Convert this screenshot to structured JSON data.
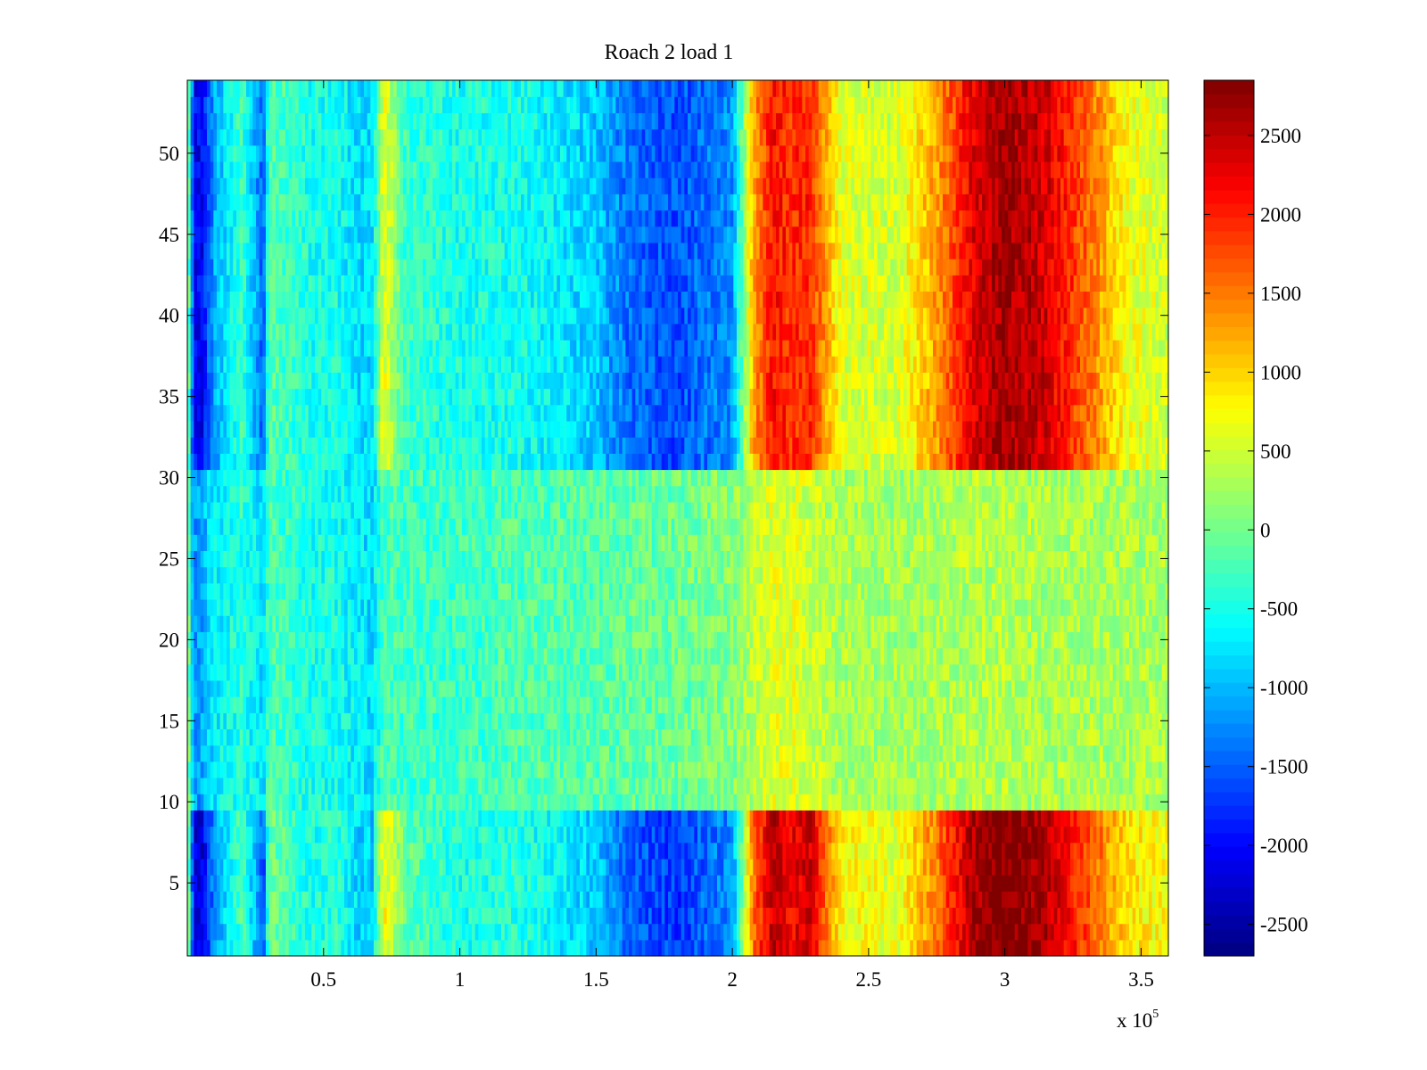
{
  "chart_data": {
    "type": "heatmap",
    "title": "Roach 2 load 1",
    "xlabel": "",
    "ylabel": "",
    "x_multiplier_label": "x 10",
    "x_multiplier_exponent": "5",
    "x_range_scaled": [
      0,
      3.6
    ],
    "y_range": [
      0.5,
      54.5
    ],
    "x_ticks": [
      0.5,
      1,
      1.5,
      2,
      2.5,
      3,
      3.5
    ],
    "x_tick_labels": [
      "0.5",
      "1",
      "1.5",
      "2",
      "2.5",
      "3",
      "3.5"
    ],
    "y_ticks": [
      5,
      10,
      15,
      20,
      25,
      30,
      35,
      40,
      45,
      50
    ],
    "y_tick_labels": [
      "5",
      "10",
      "15",
      "20",
      "25",
      "30",
      "35",
      "40",
      "45",
      "50"
    ],
    "colorbar": {
      "colormap": "jet",
      "range": [
        -2700,
        2850
      ],
      "ticks": [
        -2500,
        -2000,
        -1500,
        -1000,
        -500,
        0,
        500,
        1000,
        1500,
        2000,
        2500
      ],
      "tick_labels": [
        "-2500",
        "-2000",
        "-1500",
        "-1000",
        "-500",
        "0",
        "500",
        "1000",
        "1500",
        "2000",
        "2500"
      ]
    },
    "rows": 54,
    "x_points": [
      0.0,
      0.025,
      0.05,
      0.1,
      0.2,
      0.28,
      0.3,
      0.45,
      0.55,
      0.62,
      0.68,
      0.72,
      0.8,
      1.0,
      1.2,
      1.5,
      1.62,
      1.8,
      2.0,
      2.08,
      2.15,
      2.22,
      2.28,
      2.4,
      2.6,
      2.75,
      2.88,
      3.0,
      3.15,
      3.3,
      3.45,
      3.6
    ],
    "row_groups": [
      {
        "name": "rows 1-9",
        "values": [
          400,
          -2200,
          -2300,
          -1200,
          -200,
          -1600,
          0,
          -500,
          -400,
          -800,
          -900,
          800,
          -100,
          -500,
          -400,
          -900,
          -1500,
          -1700,
          -1200,
          1600,
          2500,
          2200,
          2500,
          800,
          600,
          1500,
          2600,
          2900,
          2600,
          1800,
          900,
          700
        ]
      },
      {
        "name": "rows 10-30",
        "values": [
          300,
          -1200,
          -1100,
          -700,
          -400,
          -800,
          -200,
          -500,
          -500,
          -700,
          -800,
          -200,
          -300,
          -300,
          -200,
          -150,
          -100,
          -50,
          100,
          400,
          600,
          600,
          500,
          300,
          250,
          300,
          350,
          350,
          300,
          300,
          300,
          300
        ]
      },
      {
        "name": "rows 31-54",
        "values": [
          400,
          -2000,
          -2100,
          -1100,
          -300,
          -1500,
          -100,
          -500,
          -500,
          -800,
          -800,
          700,
          -300,
          -500,
          -500,
          -900,
          -1400,
          -1600,
          -1200,
          1300,
          2100,
          1900,
          2000,
          600,
          500,
          1300,
          2300,
          2700,
          2400,
          1600,
          700,
          500
        ]
      }
    ]
  }
}
